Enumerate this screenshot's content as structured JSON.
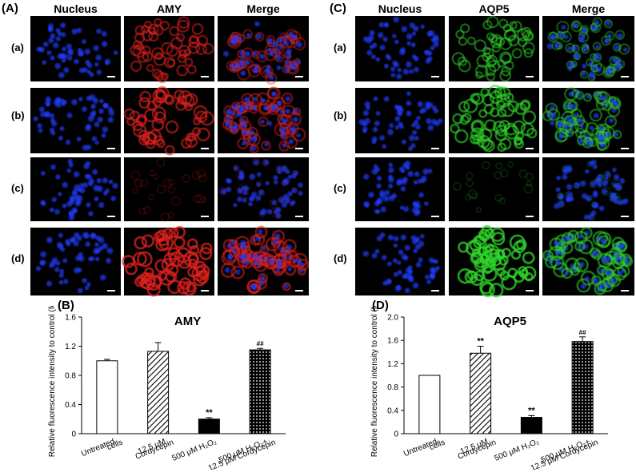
{
  "panels": {
    "A": {
      "letter": "(A)",
      "columns": [
        "Nucleus",
        "AMY",
        "Merge"
      ]
    },
    "C": {
      "letter": "(C)",
      "columns": [
        "Nucleus",
        "AQP5",
        "Merge"
      ]
    },
    "B": {
      "letter": "(B)"
    },
    "D": {
      "letter": "(D)"
    }
  },
  "row_labels": [
    "(a)",
    "(b)",
    "(c)",
    "(d)"
  ],
  "micrograph_rows": {
    "A": [
      {
        "label": "(a)",
        "stain_intensity": 0.55
      },
      {
        "label": "(b)",
        "stain_intensity": 0.65
      },
      {
        "label": "(c)",
        "stain_intensity": 0.12
      },
      {
        "label": "(d)",
        "stain_intensity": 0.8
      }
    ],
    "C": [
      {
        "label": "(a)",
        "stain_intensity": 0.5
      },
      {
        "label": "(b)",
        "stain_intensity": 0.65
      },
      {
        "label": "(c)",
        "stain_intensity": 0.1
      },
      {
        "label": "(d)",
        "stain_intensity": 0.8
      }
    ]
  },
  "colors": {
    "nucleus": "#1f3cff",
    "amy": "#e0201e",
    "aqp5": "#2fd52a",
    "background": "#000000"
  },
  "chart_data": [
    {
      "type": "bar",
      "title": "AMY",
      "ylabel": "Relative fluorescence intensity to control (fold)",
      "ylim": [
        0,
        1.6
      ],
      "yticks": [
        "0",
        "0.4",
        "0.8",
        "1.2",
        "1.6"
      ],
      "ytick_values": [
        0,
        0.4,
        0.8,
        1.2,
        1.6
      ],
      "categories": [
        [
          "Untreated",
          "cells"
        ],
        [
          "12.5 μM",
          "Cordycepin"
        ],
        [
          "500 μM H₂O₂"
        ],
        [
          "500 μM H₂O₂+",
          "12.5 μM Cordycepin"
        ]
      ],
      "values": [
        1.0,
        1.13,
        0.2,
        1.15
      ],
      "errors": [
        0.02,
        0.12,
        0.02,
        0.02
      ],
      "fills": [
        "white",
        "diagonal",
        "solid",
        "dots"
      ],
      "annotations": [
        "",
        "",
        "**",
        "##"
      ]
    },
    {
      "type": "bar",
      "title": "AQP5",
      "ylabel": "Relative fluorescence intensity to control (fold)",
      "ylim": [
        0,
        2.0
      ],
      "yticks": [
        "0",
        "0.4",
        "0.8",
        "1.2",
        "1.6",
        "2.0"
      ],
      "ytick_values": [
        0,
        0.4,
        0.8,
        1.2,
        1.6,
        2.0
      ],
      "categories": [
        [
          "Untreated",
          "cells"
        ],
        [
          "12.5 μM",
          "Cordycepin"
        ],
        [
          "500 μM H₂O₂"
        ],
        [
          "500 μM H₂O₂+",
          "12.5 μM Cordycepin"
        ]
      ],
      "values": [
        1.0,
        1.38,
        0.28,
        1.58
      ],
      "errors": [
        0.0,
        0.12,
        0.03,
        0.08
      ],
      "fills": [
        "white",
        "diagonal",
        "solid",
        "dots"
      ],
      "annotations": [
        "",
        "**",
        "**",
        "##"
      ]
    }
  ]
}
